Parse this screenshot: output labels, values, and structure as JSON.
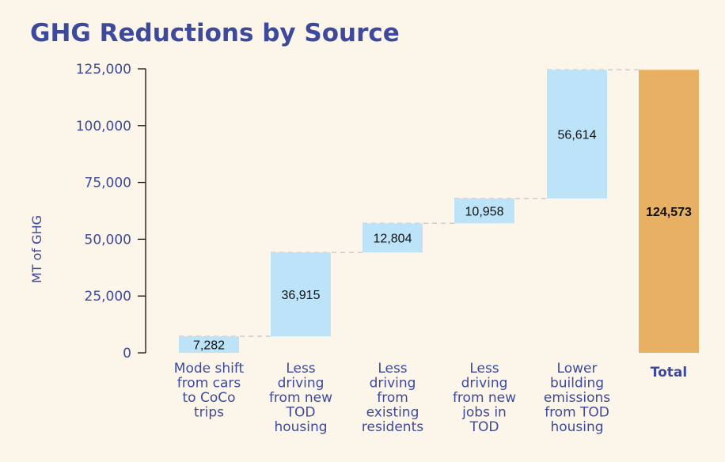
{
  "chart_data": {
    "type": "waterfall",
    "title": "GHG Reductions by Source",
    "ylabel": "MT of GHG",
    "xlabel": "",
    "ylim": [
      0,
      125000
    ],
    "yticks": [
      0,
      25000,
      50000,
      75000,
      100000,
      125000
    ],
    "ytick_labels": [
      "0",
      "25,000",
      "50,000",
      "75,000",
      "100,000",
      "125,000"
    ],
    "categories": [
      [
        "Mode shift",
        "from cars",
        "to CoCo",
        "trips"
      ],
      [
        "Less",
        "driving",
        "from new",
        "TOD",
        "housing"
      ],
      [
        "Less",
        "driving",
        "from",
        "existing",
        "residents"
      ],
      [
        "Less",
        "driving",
        "from new",
        "jobs in",
        "TOD"
      ],
      [
        "Lower",
        "building",
        "emissions",
        "from TOD",
        "housing"
      ]
    ],
    "values": [
      7282,
      36915,
      12804,
      10958,
      56614
    ],
    "value_labels": [
      "7,282",
      "36,915",
      "12,804",
      "10,958",
      "56,614"
    ],
    "total": {
      "label": "Total",
      "value": 124573,
      "value_label": "124,573"
    },
    "colors": {
      "step": "#bde3f8",
      "total": "#e8b062",
      "text": "#3d4a9c",
      "connector": "#cccccc"
    },
    "grid": false,
    "connectors": "dashed"
  }
}
